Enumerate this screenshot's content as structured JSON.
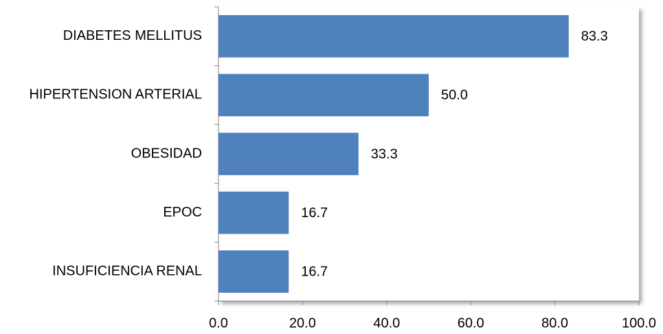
{
  "chart_data": {
    "type": "bar",
    "horizontal": true,
    "categories": [
      "DIABETES MELLITUS",
      "HIPERTENSION ARTERIAL",
      "OBESIDAD",
      "EPOC",
      "INSUFICIENCIA RENAL"
    ],
    "values": [
      83.3,
      50.0,
      33.3,
      16.7,
      16.7
    ],
    "value_labels": [
      "83.3",
      "50.0",
      "33.3",
      "16.7",
      "16.7"
    ],
    "color": "#4f81bd",
    "xlim": [
      0,
      100
    ],
    "xticks": [
      {
        "value": 0,
        "label": "0.0"
      },
      {
        "value": 20,
        "label": "20.0"
      },
      {
        "value": 40,
        "label": "40.0"
      },
      {
        "value": 60,
        "label": "60.0"
      },
      {
        "value": 80,
        "label": "80.0"
      },
      {
        "value": 100,
        "label": "100.0"
      }
    ],
    "grid": false
  }
}
